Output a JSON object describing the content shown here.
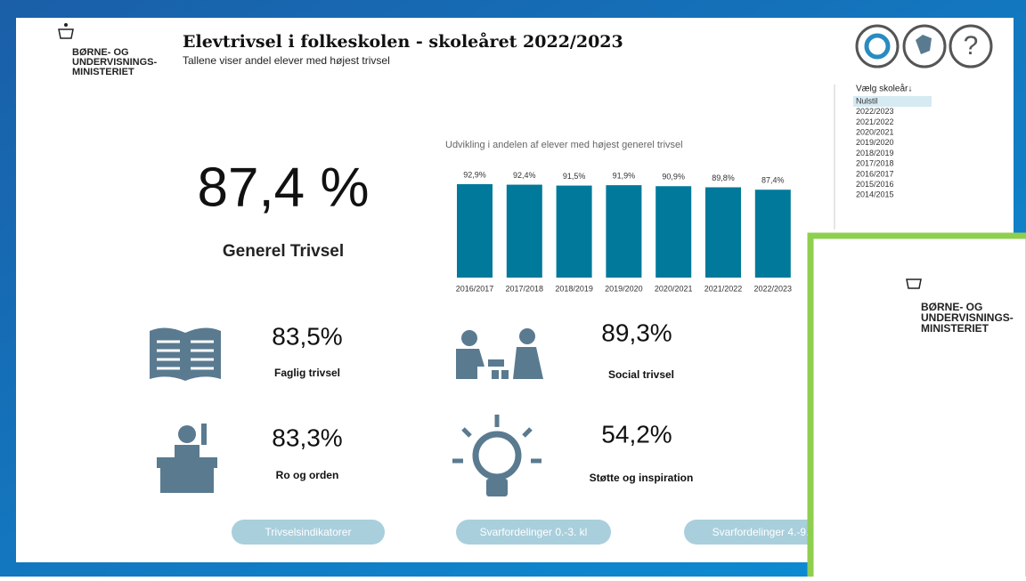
{
  "header": {
    "logo": [
      "BØRNE- OG",
      "UNDERVISNINGS-",
      "MINISTERIET"
    ],
    "title": "Elevtrivsel i folkeskolen - skoleåret 2022/2023",
    "subtitle": "Tallene viser andel elever med højest trivsel"
  },
  "slicer": {
    "label": "Vælg skoleår↓",
    "items": [
      "Nulstil",
      "2022/2023",
      "2021/2022",
      "2020/2021",
      "2019/2020",
      "2018/2019",
      "2017/2018",
      "2016/2017",
      "2015/2016",
      "2014/2015"
    ]
  },
  "kpi": {
    "value": "87,4 %",
    "label": "Generel Trivsel"
  },
  "indicators": [
    {
      "value": "83,5%",
      "label": "Faglig trivsel"
    },
    {
      "value": "89,3%",
      "label": "Social trivsel"
    },
    {
      "value": "83,3%",
      "label": "Ro og orden"
    },
    {
      "value": "54,2%",
      "label": "Støtte og inspiration"
    }
  ],
  "chart_data": {
    "type": "bar",
    "title": "Udvikling i andelen af elever med højest generel trivsel",
    "categories": [
      "2016/2017",
      "2017/2018",
      "2018/2019",
      "2019/2020",
      "2020/2021",
      "2021/2022",
      "2022/2023"
    ],
    "values": [
      92.9,
      92.4,
      91.5,
      91.9,
      90.9,
      89.8,
      87.4
    ],
    "value_labels": [
      "92,9%",
      "92,4%",
      "91,5%",
      "91,9%",
      "90,9%",
      "89,8%",
      "87,4%"
    ],
    "color": "#00799a"
  },
  "buttons": [
    "Trivselsindikatorer",
    "Svarfordelinger 0.-3. kl",
    "Svarfordelinger 4.-9."
  ]
}
